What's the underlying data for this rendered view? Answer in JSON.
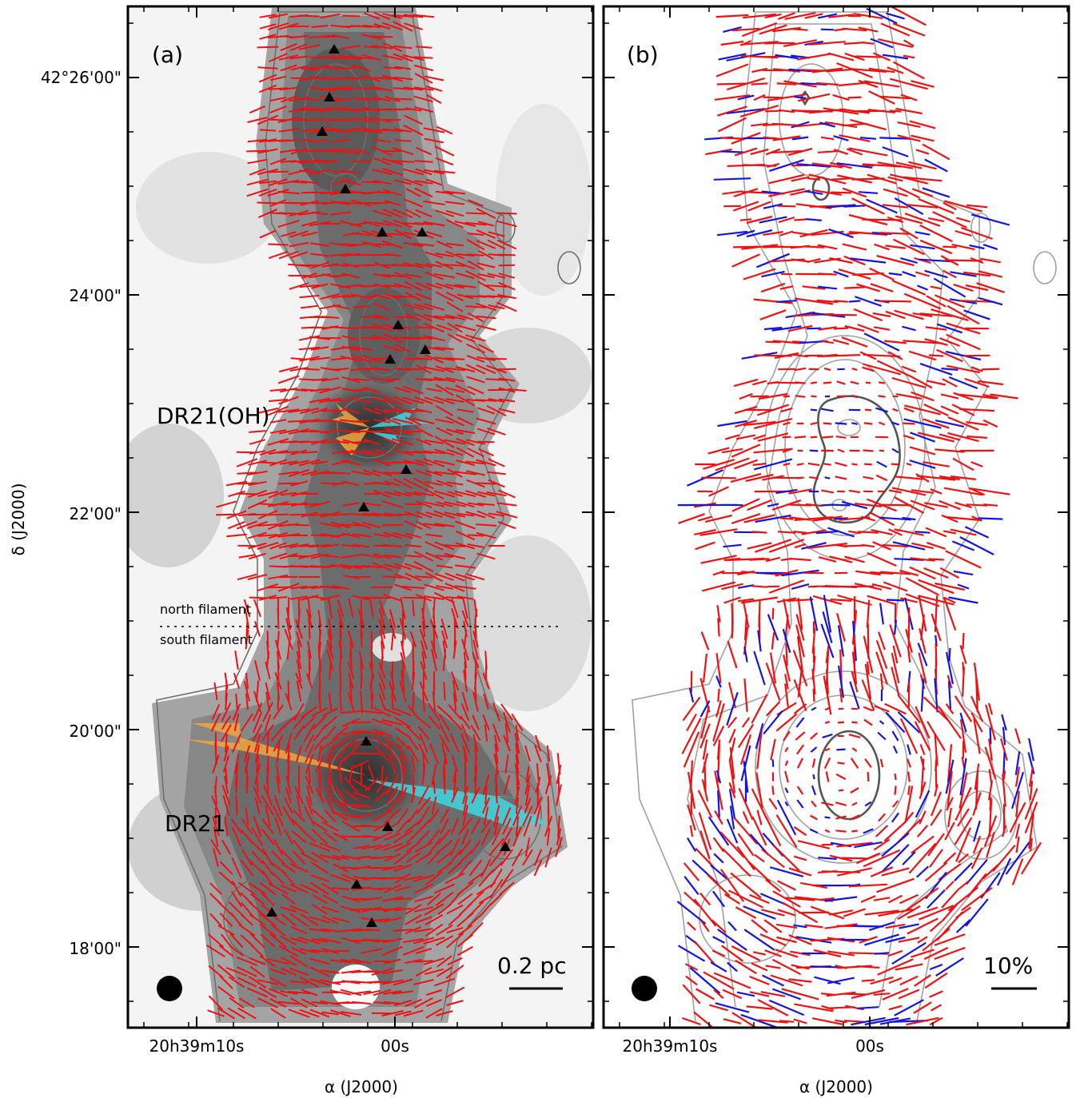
{
  "panel_a": {
    "label": "(a)",
    "annotations": {
      "source_north": "DR21(OH)",
      "source_south": "DR21",
      "north_filament": "north filament",
      "south_filament": "south filament"
    },
    "scale_bar_label": "0.2 pc",
    "colors": {
      "vector": "#ee1111",
      "outflow_blue": "#3fd6e0",
      "outflow_red": "#f0a640",
      "contour": "#7a7a7a"
    }
  },
  "panel_b": {
    "label": "(b)",
    "scale_bar_label": "10%",
    "colors": {
      "vector_red": "#ee1111",
      "vector_blue": "#1414e0",
      "contour": "#9a9a9a"
    }
  },
  "axes": {
    "ylabel": "δ (J2000)",
    "xlabel": "α (J2000)",
    "yticks": [
      "42°26'00\"",
      "24'00\"",
      "22'00\"",
      "20'00\"",
      "18'00\""
    ],
    "xticks_a": [
      "20h39m10s",
      "00s"
    ],
    "xticks_b": [
      "20h39m10s",
      "00s"
    ]
  }
}
